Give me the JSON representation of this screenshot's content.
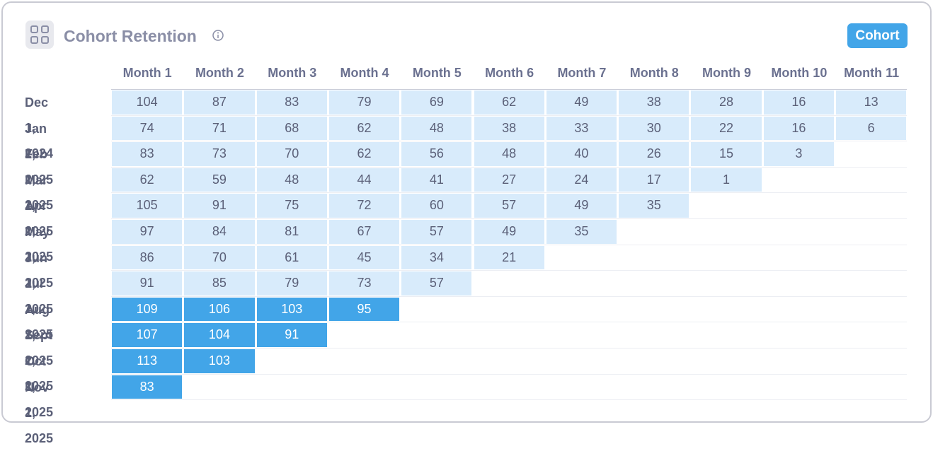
{
  "header": {
    "title": "Cohort Retention",
    "button": "Cohort"
  },
  "table": {
    "columns": [
      "Month 1",
      "Month 2",
      "Month 3",
      "Month 4",
      "Month 5",
      "Month 6",
      "Month 7",
      "Month 8",
      "Month 9",
      "Month 10",
      "Month 11"
    ],
    "rows": [
      {
        "label": "Dec 1, 2024",
        "color": "#d8ebfb",
        "values": [
          104,
          87,
          83,
          79,
          69,
          62,
          49,
          38,
          28,
          16,
          13
        ]
      },
      {
        "label": "Jan 1, 2025",
        "color": "#d8ebfb",
        "values": [
          74,
          71,
          68,
          62,
          48,
          38,
          33,
          30,
          22,
          16,
          6
        ]
      },
      {
        "label": "Feb 1, 2025",
        "color": "#d8ebfb",
        "values": [
          83,
          73,
          70,
          62,
          56,
          48,
          40,
          26,
          15,
          3
        ]
      },
      {
        "label": "Mar 1, 2025",
        "color": "#d8ebfb",
        "values": [
          62,
          59,
          48,
          44,
          41,
          27,
          24,
          17,
          1
        ]
      },
      {
        "label": "Apr 1, 2025",
        "color": "#d8ebfb",
        "values": [
          105,
          91,
          75,
          72,
          60,
          57,
          49,
          35
        ]
      },
      {
        "label": "May 1, 2025",
        "color": "#d8ebfb",
        "values": [
          97,
          84,
          81,
          67,
          57,
          49,
          35
        ]
      },
      {
        "label": "Jun 1, 2025",
        "color": "#d8ebfb",
        "values": [
          86,
          70,
          61,
          45,
          34,
          21
        ]
      },
      {
        "label": "Jul 1, 2025",
        "color": "#d8ebfb",
        "values": [
          91,
          85,
          79,
          73,
          57
        ]
      },
      {
        "label": "Aug 1, 2025",
        "color": "#42a5e8",
        "values": [
          109,
          106,
          103,
          95
        ]
      },
      {
        "label": "Sept 1, 2025",
        "color": "#42a5e8",
        "values": [
          107,
          104,
          91
        ]
      },
      {
        "label": "Oct 1, 2025",
        "color": "#42a5e8",
        "values": [
          113,
          103
        ]
      },
      {
        "label": "Nov 1, 2025",
        "color": "#42a5e8",
        "values": [
          83
        ]
      }
    ]
  }
}
